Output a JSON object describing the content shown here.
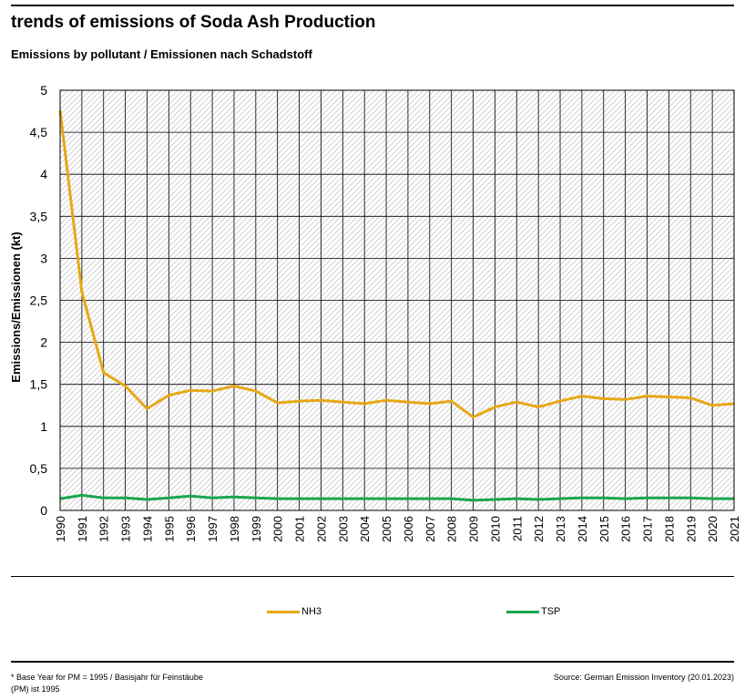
{
  "header": {
    "title": "trends of emissions of Soda Ash Production",
    "subtitle": "Emissions by pollutant / Emissionen nach Schadstoff"
  },
  "footer": {
    "footnote": "* Base Year for PM = 1995 / Basisjahr für Feinstäube (PM) ist 1995",
    "source": "Source: German Emission Inventory (20.01.2023)"
  },
  "chart_data": {
    "type": "line",
    "title": "trends of emissions of Soda Ash Production",
    "subtitle": "Emissions by pollutant / Emissionen nach Schadstoff",
    "ylabel": "Emissions/Emissionen (kt)",
    "xlabel": "",
    "ylim": [
      0,
      5
    ],
    "yticks": [
      0,
      0.5,
      1,
      1.5,
      2,
      2.5,
      3,
      3.5,
      4,
      4.5,
      5
    ],
    "ytick_labels": [
      "0",
      "0,5",
      "1",
      "1,5",
      "2",
      "2,5",
      "3",
      "3,5",
      "4",
      "4,5",
      "5"
    ],
    "grid": true,
    "legend_position": "bottom",
    "x": [
      "1990",
      "1991",
      "1992",
      "1993",
      "1994",
      "1995",
      "1996",
      "1997",
      "1998",
      "1999",
      "2000",
      "2001",
      "2002",
      "2003",
      "2004",
      "2005",
      "2006",
      "2007",
      "2008",
      "2009",
      "2010",
      "2011",
      "2012",
      "2013",
      "2014",
      "2015",
      "2016",
      "2017",
      "2018",
      "2019",
      "2020",
      "2021"
    ],
    "series": [
      {
        "name": "NH3",
        "color": "#e6a817",
        "values": [
          4.76,
          2.6,
          1.64,
          1.48,
          1.21,
          1.37,
          1.43,
          1.42,
          1.48,
          1.42,
          1.28,
          1.3,
          1.31,
          1.29,
          1.27,
          1.31,
          1.29,
          1.27,
          1.3,
          1.11,
          1.23,
          1.29,
          1.23,
          1.3,
          1.36,
          1.33,
          1.32,
          1.36,
          1.35,
          1.34,
          1.25,
          1.27
        ]
      },
      {
        "name": "TSP",
        "color": "#1aa64f",
        "values": [
          0.14,
          0.18,
          0.15,
          0.15,
          0.13,
          0.15,
          0.17,
          0.15,
          0.16,
          0.15,
          0.14,
          0.14,
          0.14,
          0.14,
          0.14,
          0.14,
          0.14,
          0.14,
          0.14,
          0.12,
          0.13,
          0.14,
          0.13,
          0.14,
          0.15,
          0.15,
          0.14,
          0.15,
          0.15,
          0.15,
          0.14,
          0.14
        ]
      }
    ]
  }
}
